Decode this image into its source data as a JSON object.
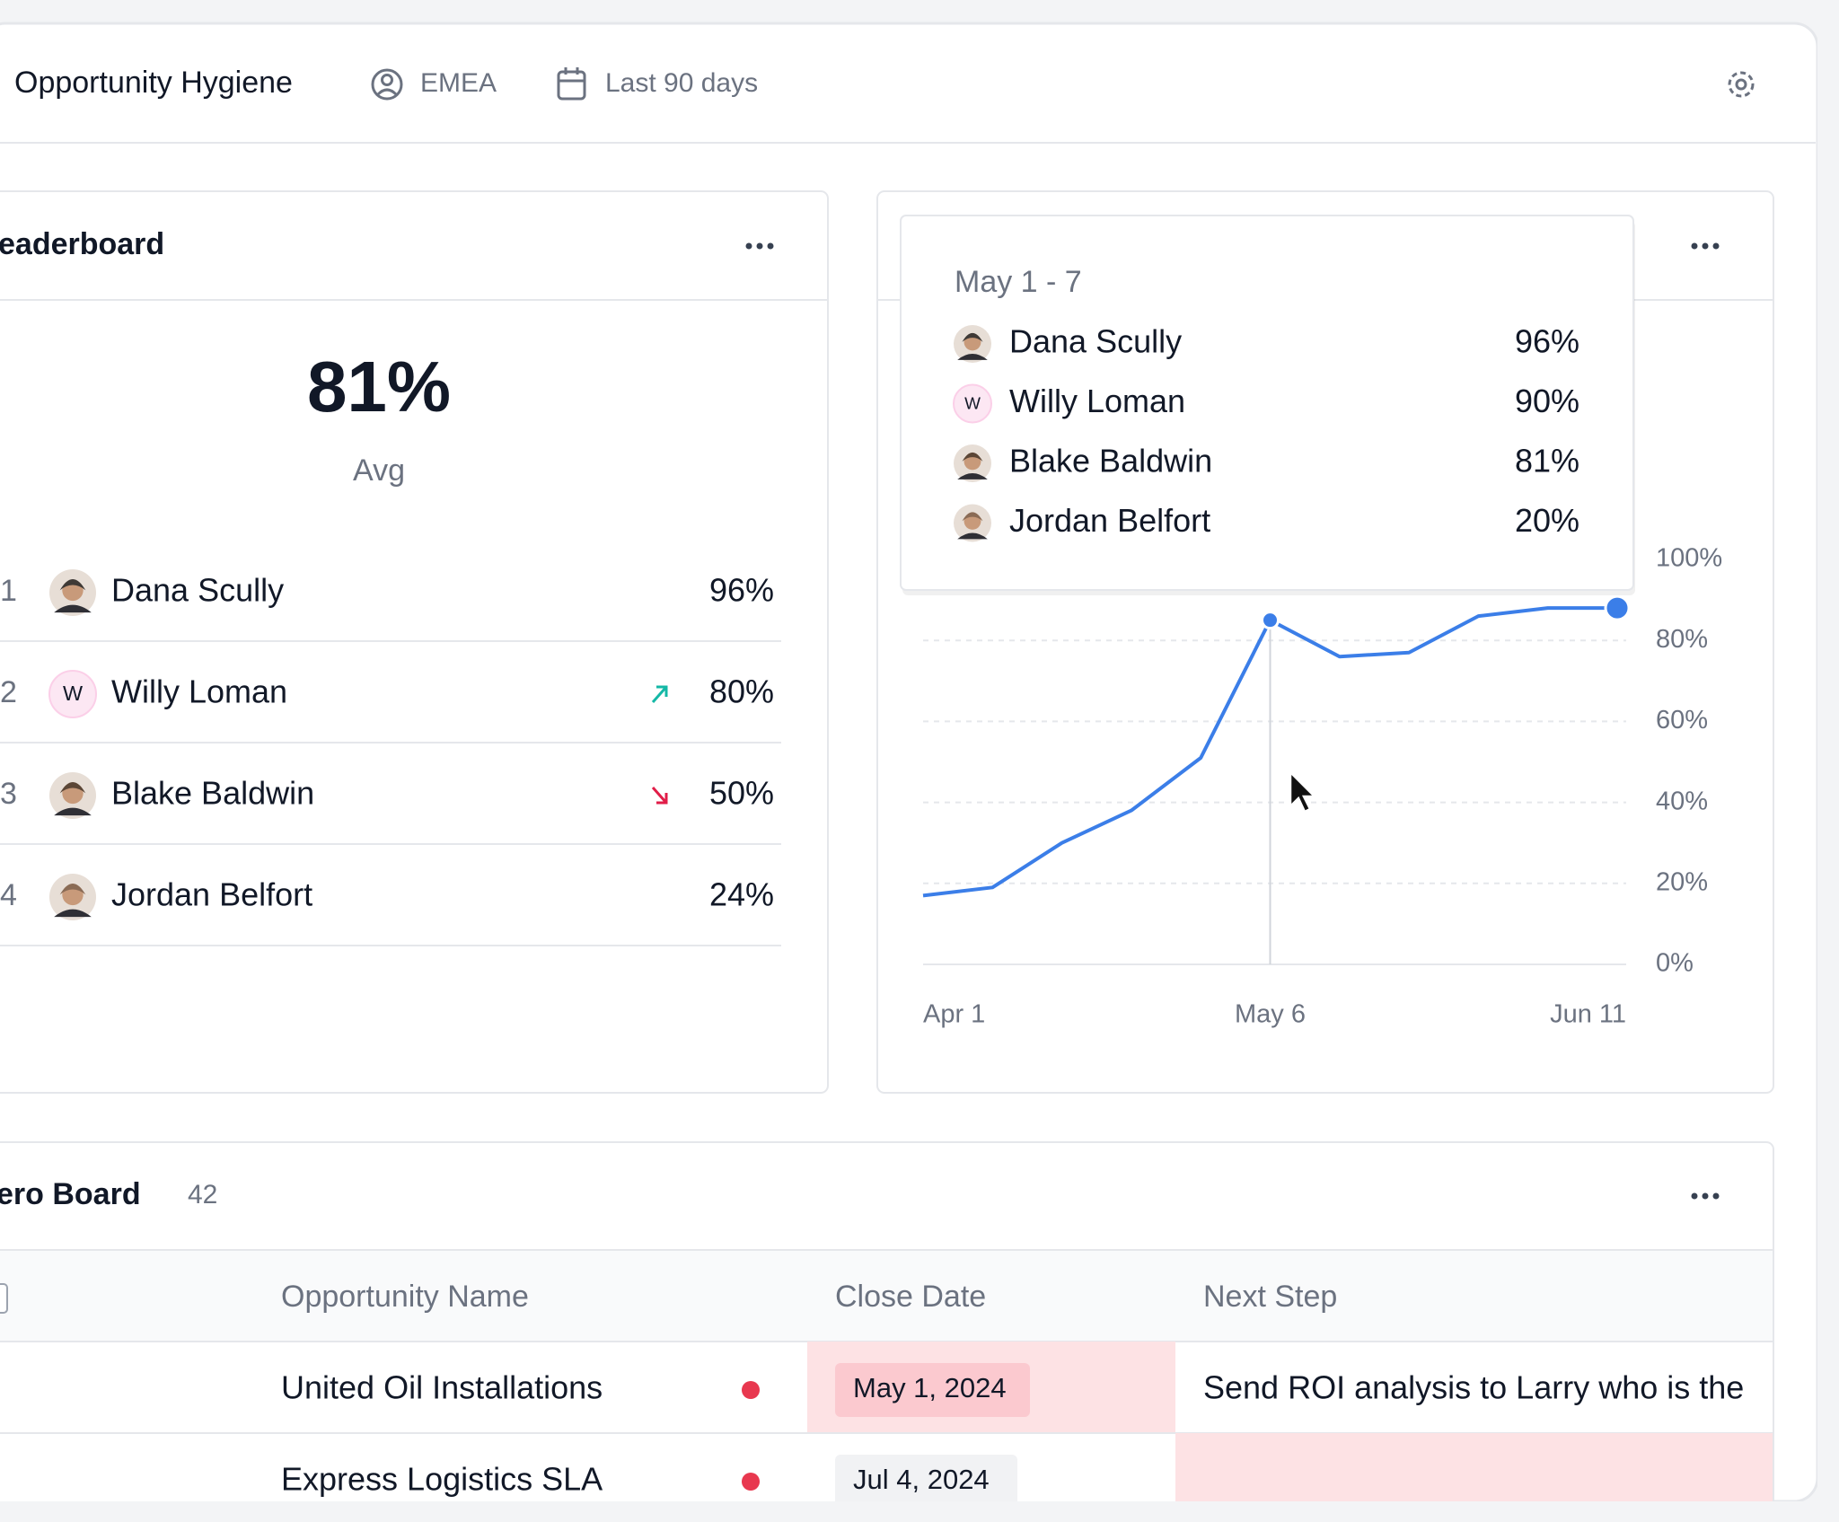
{
  "header": {
    "title": "Opportunity Hygiene",
    "region": "EMEA",
    "period": "Last 90 days"
  },
  "leaderboard": {
    "title": "eaderboard",
    "average": "81%",
    "average_label": "Avg",
    "rows": [
      {
        "rank": "1",
        "name": "Dana Scully",
        "value": "96%"
      },
      {
        "rank": "2",
        "initial": "W",
        "name": "Willy Loman",
        "trend": "up",
        "value": "80%"
      },
      {
        "rank": "3",
        "name": "Blake Baldwin",
        "trend": "down",
        "value": "50%"
      },
      {
        "rank": "4",
        "name": "Jordan Belfort",
        "value": "24%"
      }
    ]
  },
  "chart_data": {
    "type": "line",
    "categories": [
      "Apr 1",
      null,
      null,
      null,
      null,
      "May 6",
      null,
      null,
      null,
      null,
      "Jun 11"
    ],
    "series": [
      {
        "color": "#3b7ee8",
        "values": [
          17,
          19,
          30,
          38,
          51,
          85,
          76,
          77,
          86,
          88,
          88
        ]
      }
    ],
    "ylim": [
      0,
      100
    ],
    "yticks": [
      {
        "value": 0,
        "label": "0%"
      },
      {
        "value": 20,
        "label": "20%"
      },
      {
        "value": 40,
        "label": "40%"
      },
      {
        "value": 60,
        "label": "60%"
      },
      {
        "value": 80,
        "label": "80%"
      },
      {
        "value": 100,
        "label": "100%"
      }
    ],
    "grid": true,
    "tooltip": {
      "title": "May 1 - 7",
      "rows": [
        {
          "name": "Dana Scully",
          "value": "96%"
        },
        {
          "initial": "W",
          "name": "Willy Loman",
          "value": "90%"
        },
        {
          "name": "Blake Baldwin",
          "value": "81%"
        },
        {
          "name": "Jordan Belfort",
          "value": "20%"
        }
      ]
    }
  },
  "table": {
    "title": "ero Board",
    "count": "42",
    "columns": [
      "Opportunity Name",
      "Close Date",
      "Next Step"
    ],
    "rows": [
      [
        "United Oil Installations",
        "May 1, 2024",
        "Send ROI analysis to Larry who is the"
      ],
      [
        "Express Logistics SLA",
        "Jul 4, 2024",
        null
      ]
    ]
  }
}
